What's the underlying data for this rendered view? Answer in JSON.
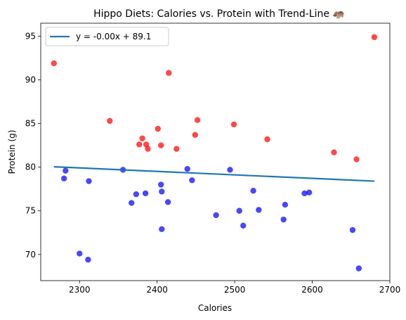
{
  "chart_data": {
    "type": "scatter",
    "title": "Hippo Diets: Calories vs. Protein with Trend-Line 🦛",
    "xlabel": "Calories",
    "ylabel": "Protein (g)",
    "xlim": [
      2250,
      2700
    ],
    "ylim": [
      67,
      96.5
    ],
    "xticks": [
      2300,
      2400,
      2500,
      2600,
      2700
    ],
    "yticks": [
      70,
      75,
      80,
      85,
      90,
      95
    ],
    "grid": false,
    "legend_position": "top-left",
    "colors": {
      "high": "#ff0000",
      "low": "#0000ff",
      "trend": "#1f77b4"
    },
    "trendline": {
      "label": "y = -0.00x + 89.1",
      "x": [
        2267,
        2680
      ],
      "y": [
        80.05,
        78.4
      ]
    },
    "series": [
      {
        "color": "#ff0000",
        "points": [
          [
            2267,
            91.9
          ],
          [
            2339,
            85.3
          ],
          [
            2377,
            82.6
          ],
          [
            2381,
            83.3
          ],
          [
            2386,
            82.6
          ],
          [
            2388,
            82.1
          ],
          [
            2401,
            84.4
          ],
          [
            2405,
            82.5
          ],
          [
            2415,
            90.8
          ],
          [
            2425,
            82.1
          ],
          [
            2449,
            83.7
          ],
          [
            2452,
            85.4
          ],
          [
            2499,
            84.9
          ],
          [
            2542,
            83.2
          ],
          [
            2628,
            81.7
          ],
          [
            2657,
            80.9
          ],
          [
            2680,
            94.9
          ]
        ]
      },
      {
        "color": "#0000ff",
        "points": [
          [
            2280,
            78.7
          ],
          [
            2282,
            79.6
          ],
          [
            2300,
            70.1
          ],
          [
            2311,
            69.4
          ],
          [
            2312,
            78.4
          ],
          [
            2356,
            79.7
          ],
          [
            2367,
            75.9
          ],
          [
            2373,
            76.9
          ],
          [
            2385,
            77.0
          ],
          [
            2405,
            78.0
          ],
          [
            2406,
            77.2
          ],
          [
            2406,
            72.9
          ],
          [
            2414,
            76.0
          ],
          [
            2439,
            79.8
          ],
          [
            2445,
            78.5
          ],
          [
            2476,
            74.5
          ],
          [
            2494,
            79.7
          ],
          [
            2506,
            75.0
          ],
          [
            2511,
            73.3
          ],
          [
            2524,
            77.3
          ],
          [
            2531,
            75.1
          ],
          [
            2563,
            74.0
          ],
          [
            2565,
            75.7
          ],
          [
            2590,
            77.0
          ],
          [
            2596,
            77.1
          ],
          [
            2652,
            72.8
          ],
          [
            2660,
            68.4
          ]
        ]
      }
    ]
  }
}
